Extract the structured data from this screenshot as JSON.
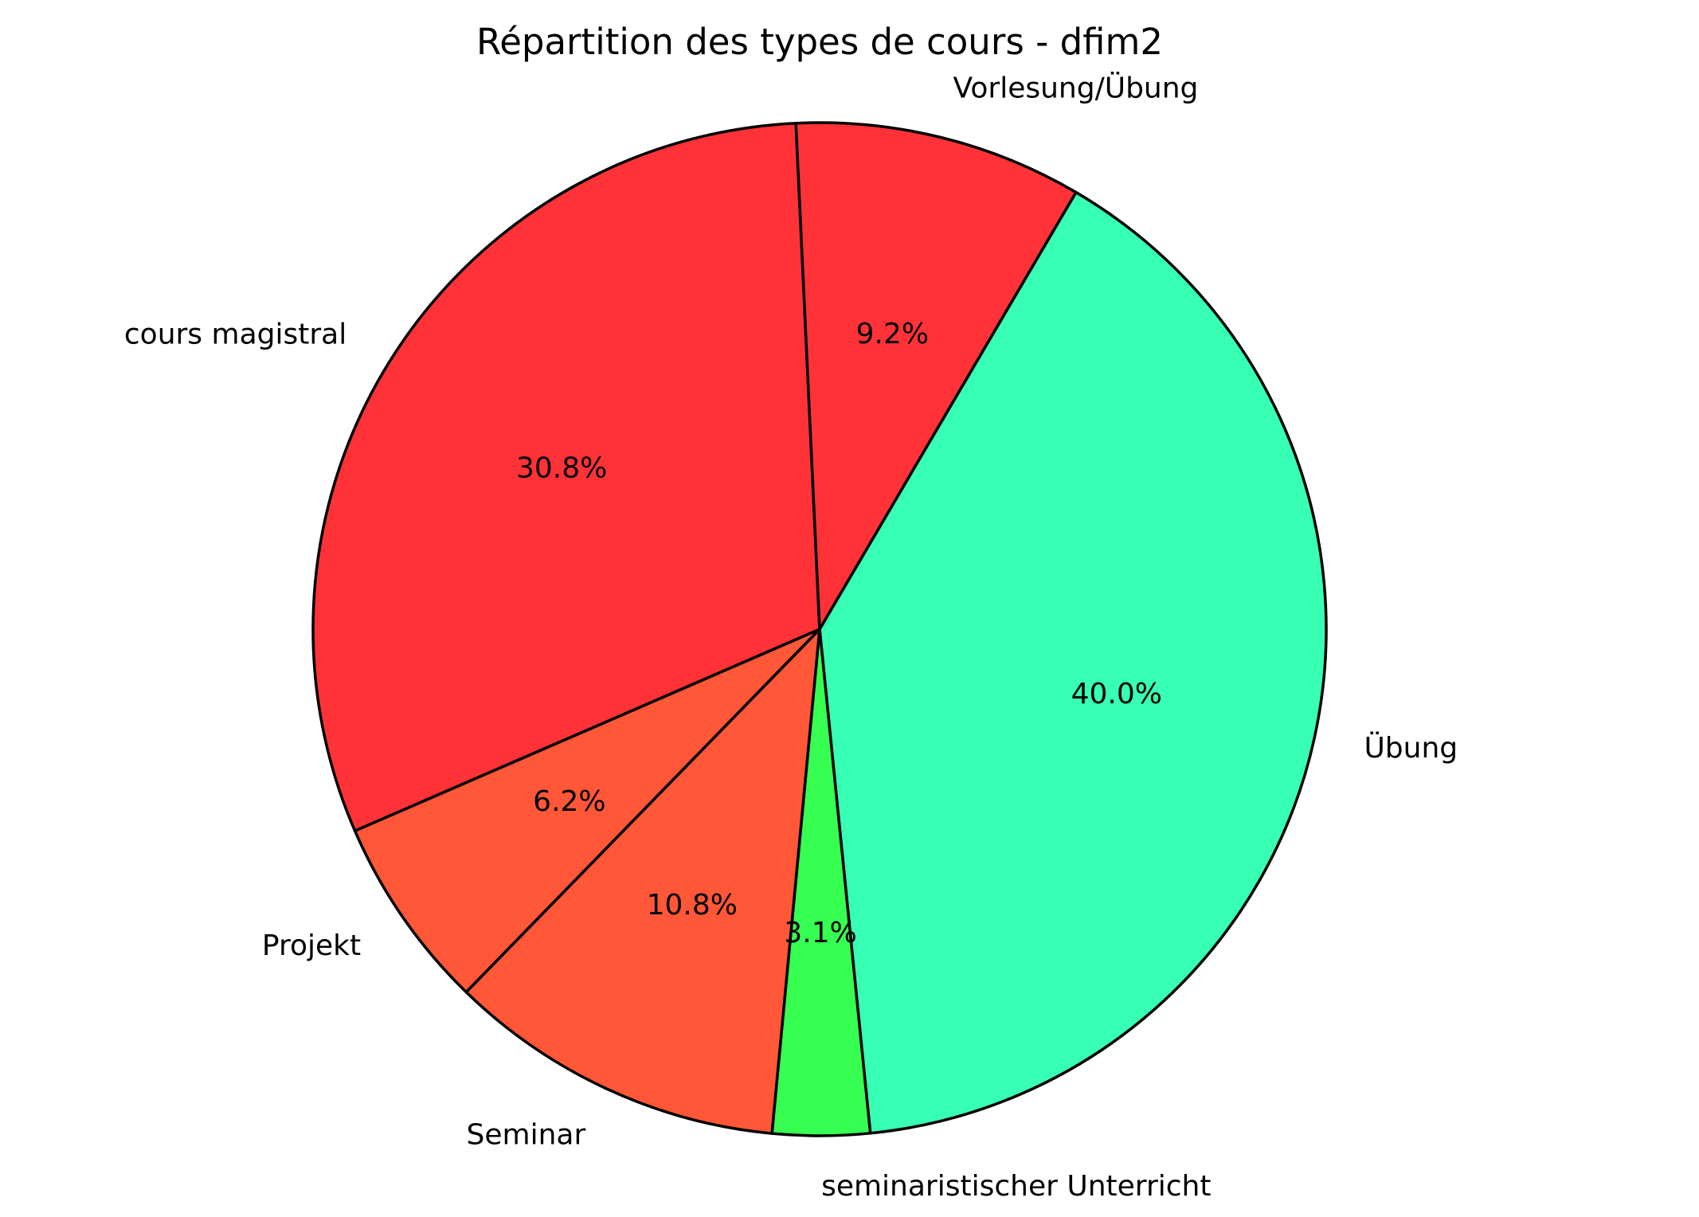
{
  "chart_data": {
    "type": "pie",
    "title": "Répartition des types de cours - dfim2",
    "start_angle_deg": -59.6,
    "direction": "clockwise",
    "slices": [
      {
        "label": "Übung",
        "value": 40.0,
        "pct_label": "40.0%",
        "color": "#37ffb3"
      },
      {
        "label": "seminaristischer Unterricht",
        "value": 3.1,
        "pct_label": "3.1%",
        "color": "#37ff51"
      },
      {
        "label": "Seminar",
        "value": 10.8,
        "pct_label": "10.8%",
        "color": "#ff5737"
      },
      {
        "label": "Projekt",
        "value": 6.2,
        "pct_label": "6.2%",
        "color": "#ff5737"
      },
      {
        "label": "cours magistral",
        "value": 30.8,
        "pct_label": "30.8%",
        "color": "#ff3337"
      },
      {
        "label": "Vorlesung/Übung",
        "value": 9.2,
        "pct_label": "9.2%",
        "color": "#ff3337"
      }
    ]
  }
}
